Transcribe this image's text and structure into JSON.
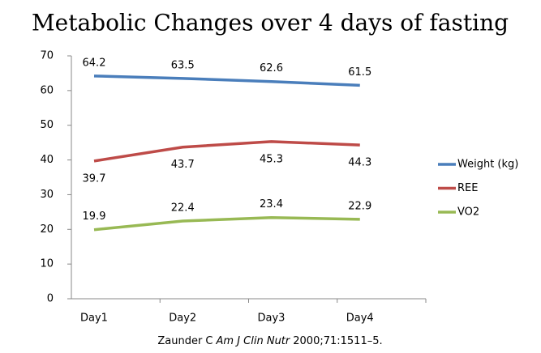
{
  "chart_data": {
    "type": "line",
    "title": "Metabolic Changes over 4 days of fasting",
    "categories": [
      "Day1",
      "Day2",
      "Day3",
      "Day4"
    ],
    "series": [
      {
        "name": "Weight (kg)",
        "color": "#4a7ebb",
        "values": [
          64.2,
          63.5,
          62.6,
          61.5
        ]
      },
      {
        "name": "REE",
        "color": "#be4b48",
        "values": [
          39.7,
          43.7,
          45.3,
          44.3
        ]
      },
      {
        "name": "VO2",
        "color": "#98b954",
        "values": [
          19.9,
          22.4,
          23.4,
          22.9
        ]
      }
    ],
    "ylim": [
      0,
      70
    ],
    "yticks": [
      0,
      10,
      20,
      30,
      40,
      50,
      60,
      70
    ],
    "grid": false,
    "legend": "right",
    "source": {
      "author": "Zaunder C",
      "journal": "Am J Clin Nutr",
      "citation": "2000;71:1511–5."
    }
  }
}
